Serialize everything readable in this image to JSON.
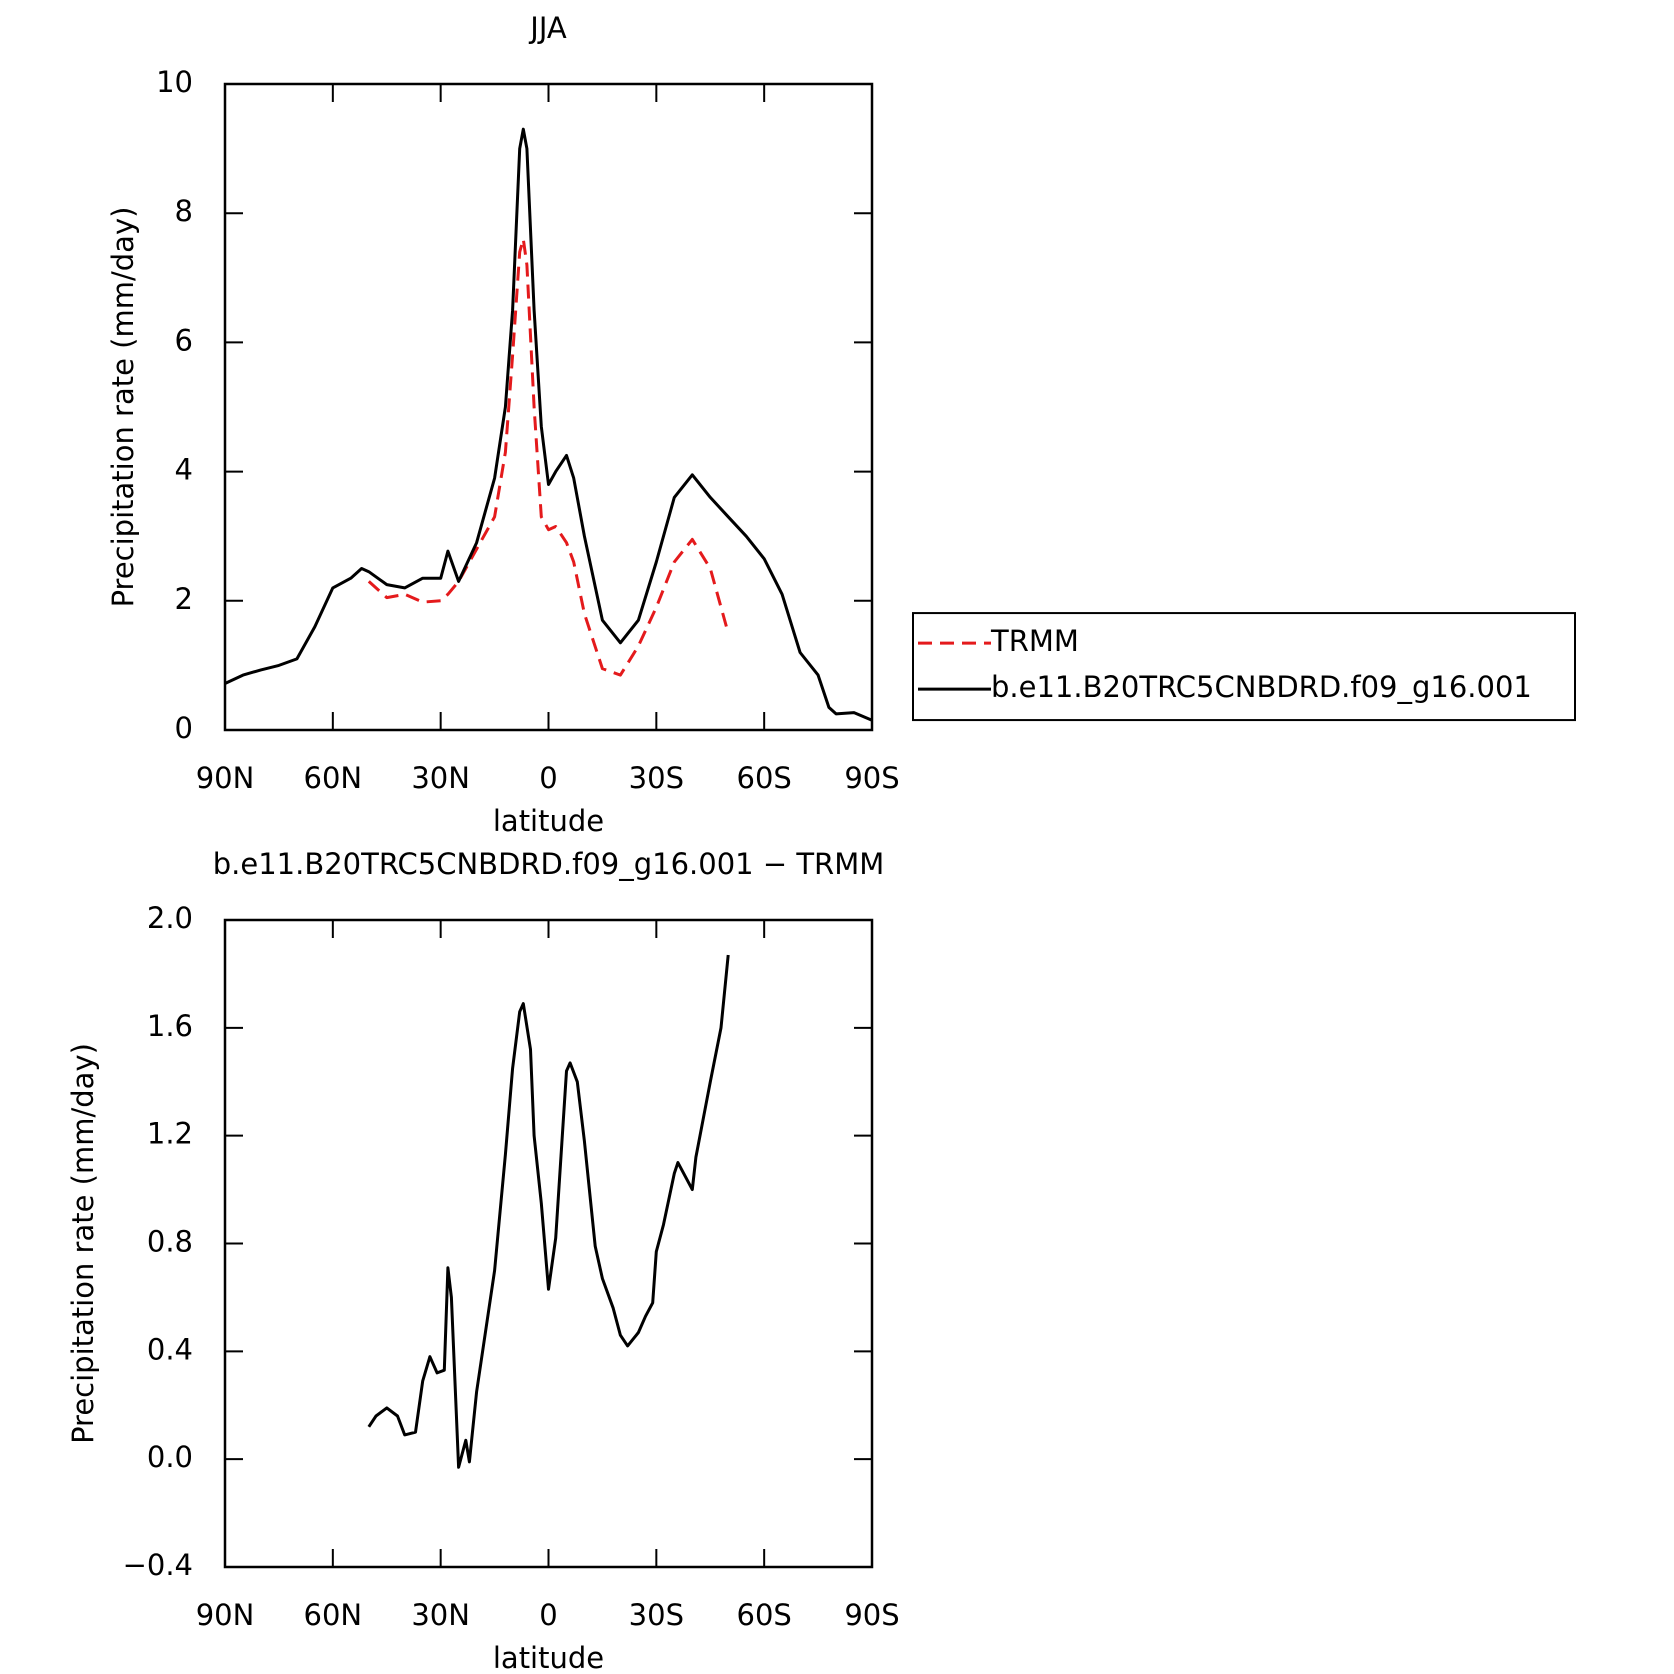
{
  "chart_data": [
    {
      "type": "line",
      "title": "JJA",
      "xlabel": "latitude",
      "ylabel": "Precipitation rate (mm/day)",
      "x": [
        90,
        85,
        80,
        75,
        70,
        65,
        60,
        55,
        52,
        50,
        45,
        40,
        35,
        30,
        28,
        25,
        20,
        15,
        12,
        10,
        8,
        7,
        6,
        4,
        2,
        0,
        -2,
        -5,
        -7,
        -10,
        -15,
        -20,
        -25,
        -30,
        -35,
        -40,
        -45,
        -50,
        -55,
        -60,
        -65,
        -70,
        -75,
        -78,
        -80,
        -85,
        -90
      ],
      "series": [
        {
          "name": "TRMM",
          "color": "#e41a1c",
          "linestyle": "dashed",
          "values": [
            null,
            null,
            null,
            null,
            null,
            null,
            null,
            null,
            null,
            2.3,
            2.05,
            2.1,
            1.98,
            2.0,
            2.1,
            2.3,
            2.8,
            3.3,
            4.3,
            5.8,
            7.4,
            7.6,
            7.2,
            5.0,
            3.3,
            3.1,
            3.15,
            2.9,
            2.6,
            1.8,
            0.95,
            0.85,
            1.3,
            1.9,
            2.6,
            2.95,
            2.5,
            1.5,
            null,
            null,
            null,
            null,
            null,
            null,
            null,
            null,
            null
          ]
        },
        {
          "name": "b.e11.B20TRC5CNBDRD.f09_g16.001",
          "color": "#000000",
          "linestyle": "solid",
          "values": [
            0.72,
            0.85,
            0.93,
            1.0,
            1.1,
            1.6,
            2.2,
            2.35,
            2.5,
            2.45,
            2.25,
            2.2,
            2.35,
            2.35,
            2.77,
            2.3,
            2.9,
            3.9,
            5.0,
            6.5,
            9.0,
            9.3,
            9.0,
            6.5,
            4.7,
            3.8,
            4.0,
            4.25,
            3.9,
            3.0,
            1.7,
            1.35,
            1.7,
            2.6,
            3.6,
            3.95,
            3.6,
            3.3,
            3.0,
            2.65,
            2.1,
            1.2,
            0.85,
            0.35,
            0.25,
            0.27,
            0.15
          ]
        }
      ],
      "xlim": [
        90,
        -90
      ],
      "xticks": [
        {
          "value": 90,
          "label": "90N"
        },
        {
          "value": 60,
          "label": "60N"
        },
        {
          "value": 30,
          "label": "30N"
        },
        0,
        {
          "value": -30,
          "label": "30S"
        },
        {
          "value": -60,
          "label": "60S"
        },
        {
          "value": -90,
          "label": "90S"
        }
      ],
      "ylim": [
        0,
        10
      ],
      "yticks": [
        0,
        2,
        4,
        6,
        8,
        10
      ],
      "legend": "right"
    },
    {
      "type": "line",
      "title": "b.e11.B20TRC5CNBDRD.f09_g16.001 − TRMM",
      "xlabel": "latitude",
      "ylabel": "Precipitation rate (mm/day)",
      "x": [
        50,
        48,
        45,
        42,
        40,
        37,
        35,
        33,
        31,
        29,
        28,
        27,
        25,
        23,
        22,
        20,
        15,
        12,
        10,
        8,
        7,
        5,
        4,
        2,
        0,
        -2,
        -5,
        -6,
        -8,
        -10,
        -13,
        -15,
        -18,
        -20,
        -22,
        -25,
        -27,
        -29,
        -30,
        -32,
        -35,
        -36,
        -38,
        -40,
        -41,
        -43,
        -45,
        -48,
        -50
      ],
      "series": [
        {
          "color": "#000000",
          "linestyle": "solid",
          "values": [
            0.12,
            0.16,
            0.19,
            0.16,
            0.09,
            0.1,
            0.29,
            0.38,
            0.32,
            0.33,
            0.71,
            0.6,
            -0.03,
            0.07,
            -0.01,
            0.25,
            0.7,
            1.13,
            1.45,
            1.66,
            1.69,
            1.52,
            1.2,
            0.95,
            0.63,
            0.82,
            1.44,
            1.47,
            1.4,
            1.18,
            0.79,
            0.67,
            0.56,
            0.46,
            0.42,
            0.47,
            0.53,
            0.58,
            0.77,
            0.87,
            1.06,
            1.1,
            1.05,
            1.0,
            1.12,
            1.26,
            1.4,
            1.6,
            1.87
          ]
        }
      ],
      "xlim": [
        90,
        -90
      ],
      "xticks": [
        {
          "value": 90,
          "label": "90N"
        },
        {
          "value": 60,
          "label": "60N"
        },
        {
          "value": 30,
          "label": "30N"
        },
        0,
        {
          "value": -30,
          "label": "30S"
        },
        {
          "value": -60,
          "label": "60S"
        },
        {
          "value": -90,
          "label": "90S"
        }
      ],
      "ylim": [
        -0.4,
        2.0
      ],
      "yticks": [
        {
          "value": -0.4,
          "label": "−0.4"
        },
        {
          "value": 0,
          "label": "0.0"
        },
        0.4,
        0.8,
        1.2,
        1.6,
        {
          "value": 2.0,
          "label": "2.0"
        }
      ]
    }
  ]
}
